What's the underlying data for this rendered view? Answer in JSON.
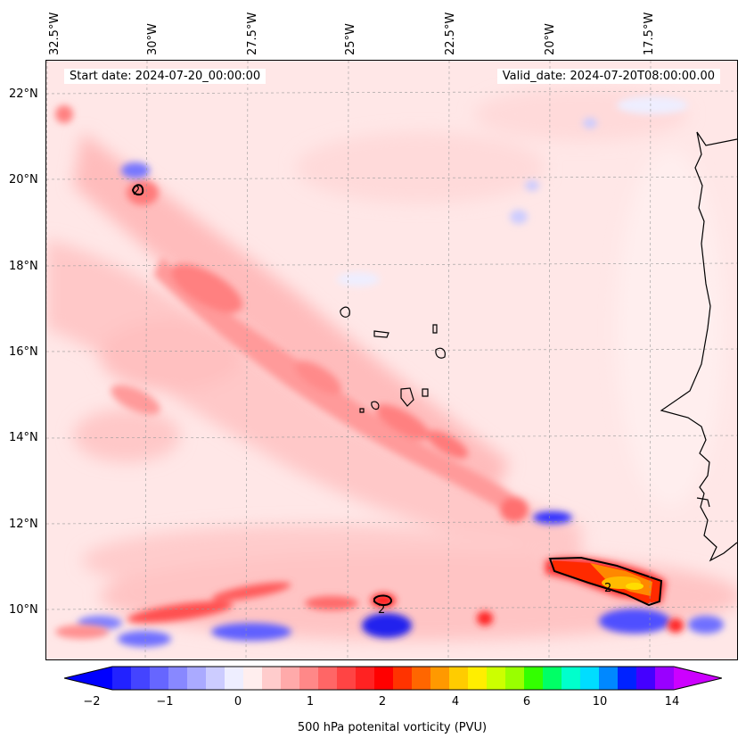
{
  "map": {
    "start_date": "Start date: 2024-07-20_00:00:00",
    "valid_date": "Valid_date: 2024-07-20T08:00:00.00",
    "longitude_labels": [
      "32.5°W",
      "30°W",
      "27.5°W",
      "25°W",
      "22.5°W",
      "20°W",
      "17.5°W"
    ],
    "latitude_labels": [
      "22°N",
      "20°N",
      "18°N",
      "16°N",
      "14°N",
      "12°N",
      "10°N"
    ],
    "contour_labels": [
      "2",
      "2",
      "2"
    ]
  },
  "colorbar": {
    "label": "500 hPa potenital vorticity (PVU)",
    "tick_labels": [
      "−2",
      "−1",
      "0",
      "1",
      "2",
      "4",
      "6",
      "10",
      "14"
    ],
    "colors": [
      "#0000ff",
      "#2222ff",
      "#4444ff",
      "#6666ff",
      "#8888ff",
      "#aaaaff",
      "#ccccff",
      "#eeeeff",
      "#ffeeee",
      "#ffcccc",
      "#ffaaaa",
      "#ff8888",
      "#ff6666",
      "#ff4444",
      "#ff2222",
      "#ff0000",
      "#ff3300",
      "#ff6600",
      "#ff9900",
      "#ffcc00",
      "#ffee00",
      "#ccff00",
      "#99ff00",
      "#33ff00",
      "#00ff66",
      "#00ffcc",
      "#00ddff",
      "#0088ff",
      "#0022ff",
      "#4400ff",
      "#9900ff",
      "#cc00ff"
    ]
  }
}
